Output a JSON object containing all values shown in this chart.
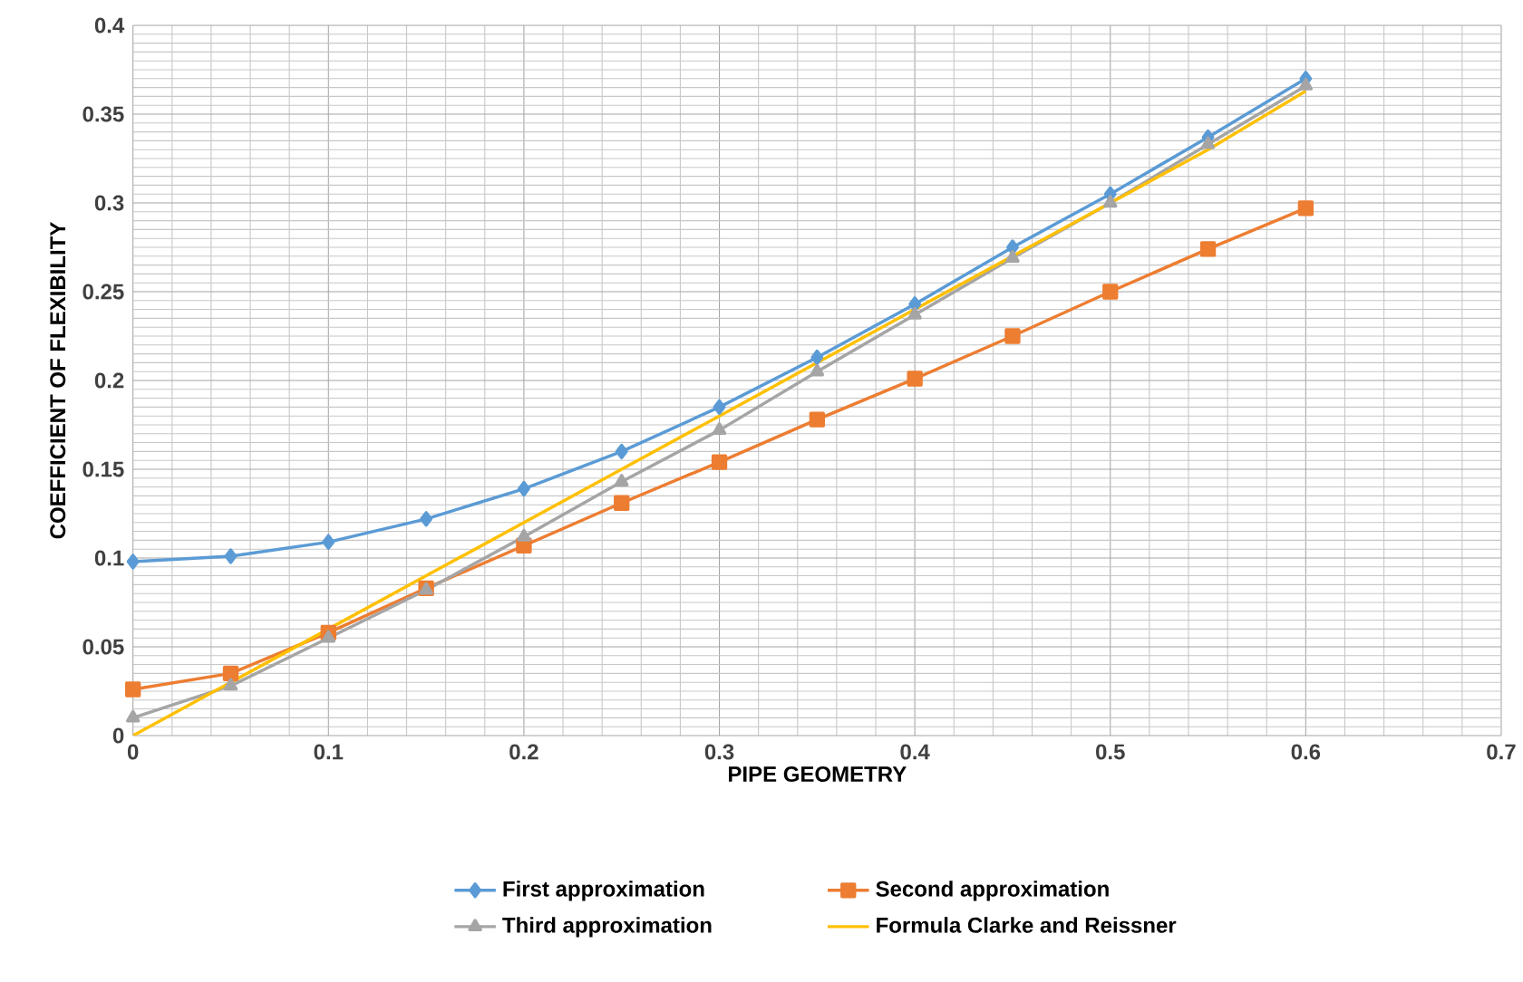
{
  "chart_data": {
    "type": "line",
    "xlabel": "PIPE GEOMETRY",
    "ylabel": "COEFFICIENT OF FLEXIBILITY",
    "x": [
      0,
      0.05,
      0.1,
      0.15,
      0.2,
      0.25,
      0.3,
      0.35,
      0.4,
      0.45,
      0.5,
      0.55,
      0.6
    ],
    "series": [
      {
        "name": "First approximation",
        "color": "#5b9bd5",
        "marker": "diamond",
        "values": [
          0.098,
          0.101,
          0.109,
          0.122,
          0.139,
          0.16,
          0.185,
          0.213,
          0.243,
          0.275,
          0.305,
          0.337,
          0.37
        ]
      },
      {
        "name": "Second approximation",
        "color": "#ed7d31",
        "marker": "square",
        "values": [
          0.026,
          0.035,
          0.058,
          0.083,
          0.107,
          0.131,
          0.154,
          0.178,
          0.201,
          0.225,
          0.25,
          0.274,
          0.297
        ]
      },
      {
        "name": "Third approximation",
        "color": "#a5a5a5",
        "marker": "triangle",
        "values": [
          0.01,
          0.028,
          0.055,
          0.082,
          0.112,
          0.143,
          0.172,
          0.205,
          0.237,
          0.269,
          0.3,
          0.333,
          0.366
        ]
      },
      {
        "name": "Formula Clarke and Reissner",
        "color": "#ffc000",
        "marker": "none",
        "values": [
          0.0,
          0.03,
          0.06,
          0.09,
          0.12,
          0.15,
          0.18,
          0.21,
          0.24,
          0.27,
          0.3,
          0.33,
          0.363
        ]
      }
    ],
    "xlim": [
      0,
      0.7
    ],
    "xticks": [
      0,
      0.1,
      0.2,
      0.3,
      0.4,
      0.5,
      0.6,
      0.7
    ],
    "ylim": [
      0,
      0.4
    ],
    "yticks": [
      0,
      0.05,
      0.1,
      0.15,
      0.2,
      0.25,
      0.3,
      0.35,
      0.4
    ],
    "grid": true,
    "legend": "bottom",
    "line_style": "solid"
  }
}
